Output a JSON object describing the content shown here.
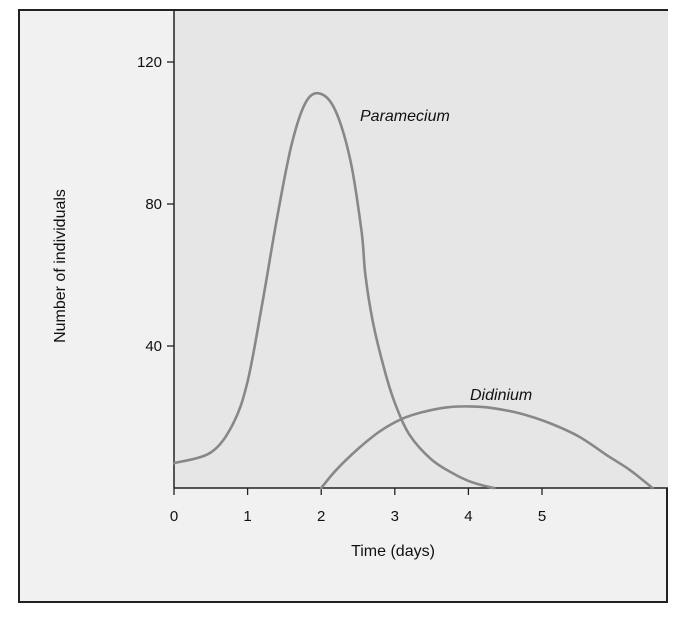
{
  "chart_data": {
    "type": "line",
    "xlabel": "Time (days)",
    "ylabel": "Number of individuals",
    "x_ticks": [
      0,
      1,
      2,
      3,
      4,
      5
    ],
    "y_ticks": [
      40,
      80,
      120
    ],
    "xlim": [
      0,
      6.6
    ],
    "ylim": [
      0,
      140
    ],
    "grid": false,
    "plot_background": "#e6e6e6",
    "frame_background": "#f1f1f1",
    "line_color": "#888888",
    "series": [
      {
        "name": "Paramecium",
        "x": [
          0,
          0.5,
          0.8,
          1.0,
          1.2,
          1.4,
          1.6,
          1.8,
          2.0,
          2.2,
          2.4,
          2.55,
          2.6,
          2.7,
          2.85,
          3.0,
          3.2,
          3.5,
          3.8,
          4.0,
          4.2,
          4.35
        ],
        "y": [
          7,
          10,
          18,
          30,
          52,
          76,
          97,
          109,
          111,
          106,
          92,
          72,
          60,
          47,
          34,
          24,
          15,
          8,
          4,
          2,
          0.7,
          0
        ]
      },
      {
        "name": "Didinium",
        "x": [
          2.0,
          2.2,
          2.5,
          2.8,
          3.1,
          3.4,
          3.7,
          4.0,
          4.3,
          4.7,
          5.1,
          5.5,
          5.9,
          6.2,
          6.5
        ],
        "y": [
          0,
          5,
          11,
          16,
          19.5,
          21.5,
          22.7,
          23,
          22.6,
          21,
          18.3,
          14.5,
          9,
          5,
          0
        ]
      }
    ]
  }
}
